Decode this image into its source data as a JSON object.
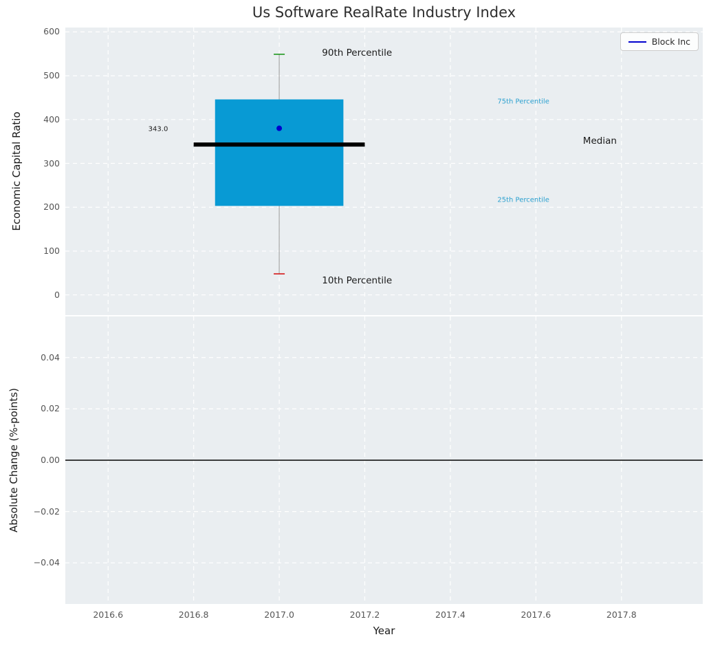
{
  "title": "Us Software RealRate Industry Index",
  "legend": {
    "label": "Block Inc",
    "color": "#0000cd"
  },
  "x_axis": {
    "label": "Year",
    "lim": [
      2016.5,
      2017.99
    ],
    "ticks": [
      2016.6,
      2016.8,
      2017.0,
      2017.2,
      2017.4,
      2017.6,
      2017.8
    ],
    "tick_labels": [
      "2016.6",
      "2016.8",
      "2017.0",
      "2017.2",
      "2017.4",
      "2017.6",
      "2017.8"
    ]
  },
  "colors": {
    "background": "#eaeef1",
    "grid": "#ffffff",
    "box_fill": "#089ad4",
    "median": "#000000",
    "whisker": "#999999",
    "cap_top": "#2e9e2e",
    "cap_bottom": "#d62728",
    "company_point": "#0000cd",
    "percentile_label": "#2ba0cf"
  },
  "chart_data": [
    {
      "type": "box",
      "title": "Us Software RealRate Industry Index",
      "ylabel": "Economic Capital Ratio",
      "x": 2017.0,
      "box_halfwidth": 0.15,
      "median_halfwidth": 0.2,
      "stats": {
        "p10": 48,
        "p25": 203,
        "median": 343.0,
        "p75": 446,
        "p90": 549
      },
      "company": {
        "name": "Block Inc",
        "value": 380
      },
      "ylim": [
        -46,
        610
      ],
      "yticks": [
        0,
        100,
        200,
        300,
        400,
        500,
        600
      ],
      "ytick_labels": [
        "0",
        "100",
        "200",
        "300",
        "400",
        "500",
        "600"
      ],
      "median_label": "343.0",
      "annotations": [
        {
          "text": "90th Percentile",
          "x": 2017.1,
          "y": 552,
          "color": "#1a1a1a",
          "size": 13.5,
          "align": "left"
        },
        {
          "text": "10th Percentile",
          "x": 2017.1,
          "y": 33,
          "color": "#1a1a1a",
          "size": 13.5,
          "align": "left"
        },
        {
          "text": "75th Percentile",
          "x": 2017.51,
          "y": 441,
          "color": "#2ba0cf",
          "size": 10,
          "align": "left"
        },
        {
          "text": "25th Percentile",
          "x": 2017.51,
          "y": 216,
          "color": "#2ba0cf",
          "size": 10,
          "align": "left"
        },
        {
          "text": "Median",
          "x": 2017.71,
          "y": 351,
          "color": "#1a1a1a",
          "size": 13.5,
          "align": "left"
        },
        {
          "text": "343.0",
          "x": 2016.74,
          "y": 378,
          "color": "#1a1a1a",
          "size": 10,
          "align": "right"
        }
      ],
      "legend_position": "upper right",
      "grid": true
    },
    {
      "type": "line",
      "ylabel": "Absolute Change (%-points)",
      "xlabel": "Year",
      "zero_line": 0.0,
      "ylim": [
        -0.056,
        0.056
      ],
      "yticks": [
        0.04,
        0.02,
        0.0,
        -0.02,
        -0.04
      ],
      "ytick_labels": [
        "0.04",
        "0.02",
        "0.00",
        "−0.02",
        "−0.04"
      ],
      "grid": true
    }
  ]
}
